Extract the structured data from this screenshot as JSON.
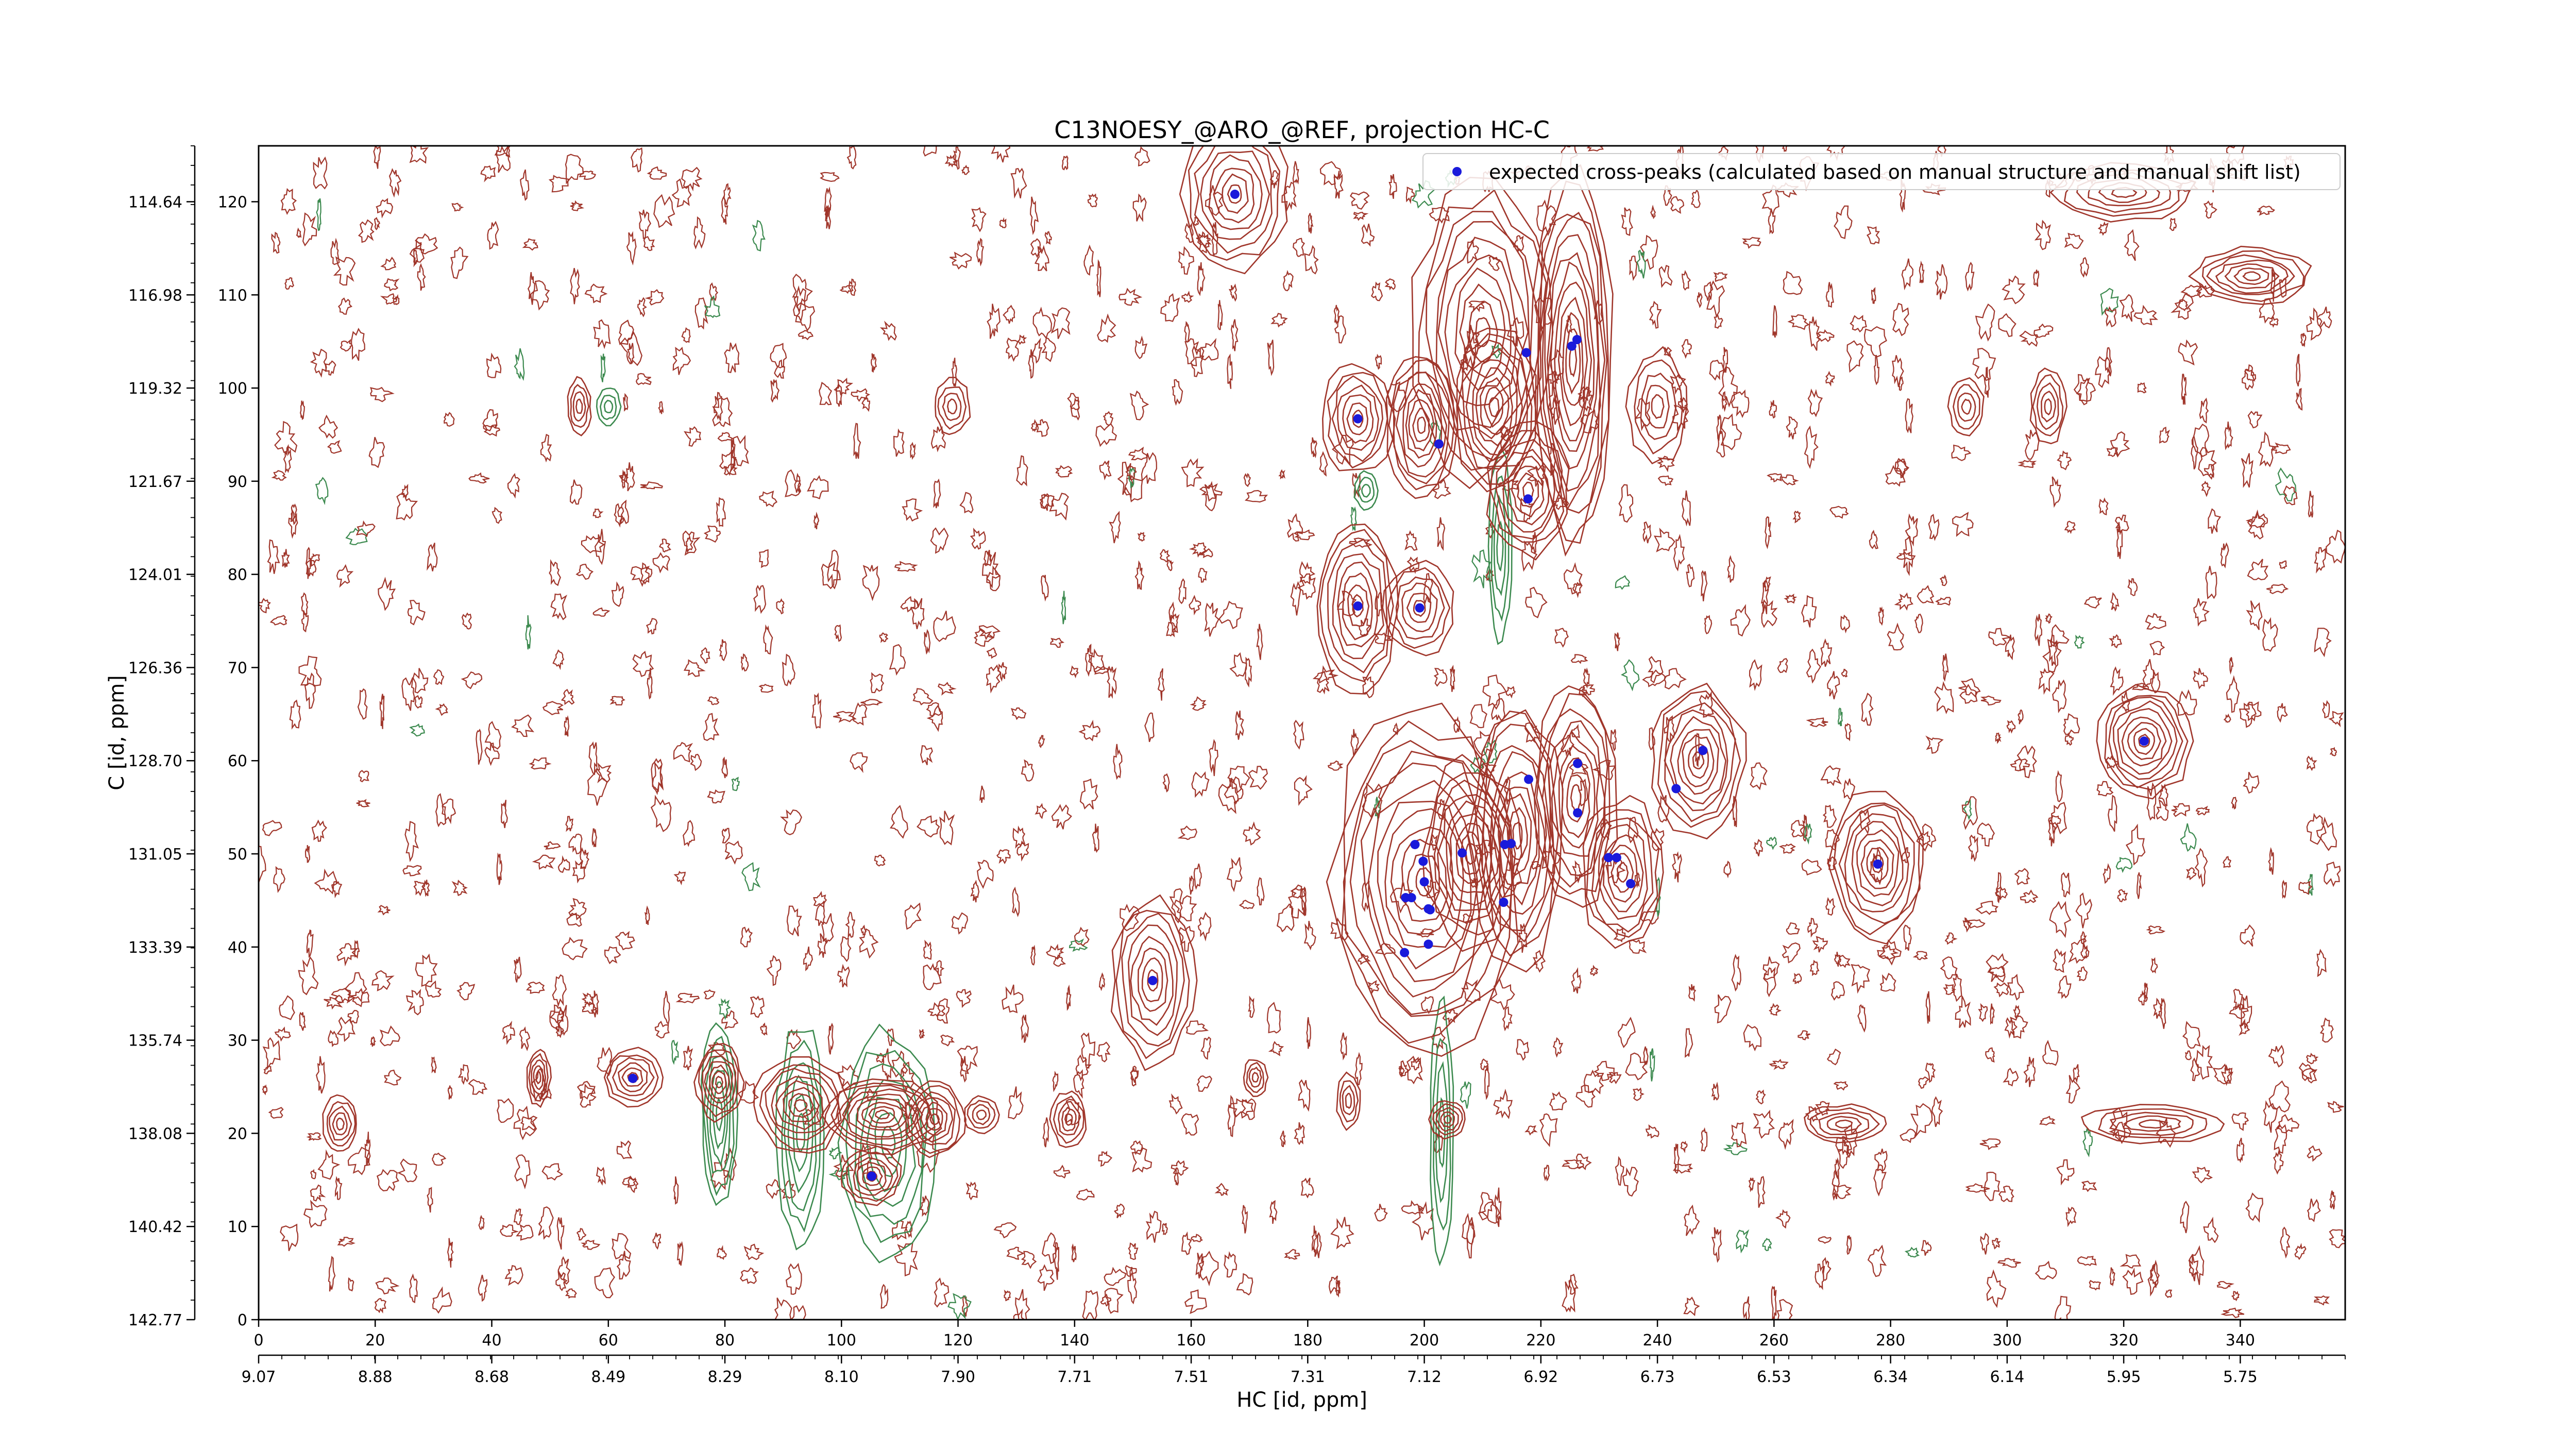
{
  "chart_data": {
    "type": "scatter",
    "title": "C13NOESY_@ARO_@REF, projection HC-C",
    "xlabel": "HC [id, ppm]",
    "ylabel": "C [id, ppm]",
    "xlim": [
      0,
      358
    ],
    "ylim": [
      0,
      126
    ],
    "x_ticks": [
      0,
      20,
      40,
      60,
      80,
      100,
      120,
      140,
      160,
      180,
      200,
      220,
      240,
      260,
      280,
      300,
      320,
      340
    ],
    "y_ticks": [
      0,
      10,
      20,
      30,
      40,
      50,
      60,
      70,
      80,
      90,
      100,
      110,
      120
    ],
    "x_ppm_ticks": [
      "9.07",
      "8.88",
      "8.68",
      "8.49",
      "8.29",
      "8.10",
      "7.90",
      "7.71",
      "7.51",
      "7.31",
      "7.12",
      "6.92",
      "6.73",
      "6.53",
      "6.34",
      "6.14",
      "5.95",
      "5.75"
    ],
    "y_ppm_ticks": [
      "142.77",
      "140.42",
      "138.08",
      "135.74",
      "133.39",
      "131.05",
      "128.70",
      "126.36",
      "124.01",
      "121.67",
      "119.32",
      "116.98",
      "114.64"
    ],
    "legend": {
      "position": "top-right",
      "label": "expected cross-peaks (calculated based on manual structure and manual shift list)"
    },
    "colors": {
      "positive_contour": "#a0362b",
      "negative_contour": "#3c8a4f",
      "expected_peak": "#1a1adb"
    },
    "series": [
      {
        "name": "expected cross-peaks (calculated based on manual structure and manual shift list)",
        "points": [
          [
            167.5,
            120.8
          ],
          [
            188.6,
            96.7
          ],
          [
            202.5,
            94.0
          ],
          [
            217.5,
            103.8
          ],
          [
            225.3,
            104.5
          ],
          [
            226.2,
            105.2
          ],
          [
            217.8,
            88.1
          ],
          [
            188.6,
            76.6
          ],
          [
            199.2,
            76.4
          ],
          [
            217.9,
            58.0
          ],
          [
            226.3,
            59.7
          ],
          [
            226.3,
            54.4
          ],
          [
            247.8,
            61.1
          ],
          [
            243.2,
            57.0
          ],
          [
            206.5,
            50.1
          ],
          [
            198.4,
            51.0
          ],
          [
            199.8,
            49.2
          ],
          [
            200.0,
            47.0
          ],
          [
            213.8,
            51.0
          ],
          [
            214.9,
            51.1
          ],
          [
            196.8,
            45.3
          ],
          [
            197.8,
            45.3
          ],
          [
            200.7,
            44.1
          ],
          [
            201.0,
            44.0
          ],
          [
            213.6,
            44.8
          ],
          [
            231.6,
            49.6
          ],
          [
            233.0,
            49.6
          ],
          [
            235.4,
            46.8
          ],
          [
            277.8,
            48.9
          ],
          [
            196.6,
            39.4
          ],
          [
            200.7,
            40.3
          ],
          [
            153.4,
            36.4
          ],
          [
            64.2,
            25.9
          ],
          [
            105.2,
            15.4
          ],
          [
            323.5,
            62.1
          ]
        ]
      }
    ],
    "contour_peaks": [
      {
        "x": 167.5,
        "y": 120.8,
        "rx": 9,
        "ry": 8,
        "n": 8
      },
      {
        "x": 188.6,
        "y": 96.7,
        "rx": 6,
        "ry": 6,
        "n": 7
      },
      {
        "x": 199.5,
        "y": 96.0,
        "rx": 6,
        "ry": 8,
        "n": 9
      },
      {
        "x": 212,
        "y": 98.0,
        "rx": 7,
        "ry": 9,
        "n": 9
      },
      {
        "x": 210,
        "y": 106.0,
        "rx": 12,
        "ry": 16,
        "n": 10
      },
      {
        "x": 225.5,
        "y": 103.0,
        "rx": 7,
        "ry": 20,
        "n": 12
      },
      {
        "x": 217.8,
        "y": 89.0,
        "rx": 7,
        "ry": 7,
        "n": 8
      },
      {
        "x": 240,
        "y": 98.0,
        "rx": 5,
        "ry": 6,
        "n": 5
      },
      {
        "x": 188.6,
        "y": 76.6,
        "rx": 7,
        "ry": 9,
        "n": 8
      },
      {
        "x": 199.2,
        "y": 76.4,
        "rx": 6,
        "ry": 5,
        "n": 6
      },
      {
        "x": 200.0,
        "y": 47.0,
        "rx": 16,
        "ry": 18,
        "n": 12
      },
      {
        "x": 208.0,
        "y": 50.0,
        "rx": 8,
        "ry": 10,
        "n": 9
      },
      {
        "x": 216.0,
        "y": 52.0,
        "rx": 8,
        "ry": 14,
        "n": 10
      },
      {
        "x": 226.0,
        "y": 56.0,
        "rx": 7,
        "ry": 12,
        "n": 9
      },
      {
        "x": 234.0,
        "y": 48.0,
        "rx": 7,
        "ry": 8,
        "n": 8
      },
      {
        "x": 247.0,
        "y": 60.0,
        "rx": 8,
        "ry": 8,
        "n": 9
      },
      {
        "x": 277.8,
        "y": 48.9,
        "rx": 8,
        "ry": 8,
        "n": 9
      },
      {
        "x": 323.5,
        "y": 62.1,
        "rx": 8,
        "ry": 6,
        "n": 9
      },
      {
        "x": 153.4,
        "y": 36.4,
        "rx": 7,
        "ry": 9,
        "n": 8
      },
      {
        "x": 64.2,
        "y": 26.0,
        "rx": 5,
        "ry": 3,
        "n": 6
      },
      {
        "x": 79.0,
        "y": 25.5,
        "rx": 4,
        "ry": 4,
        "n": 7
      },
      {
        "x": 93.0,
        "y": 23.0,
        "rx": 8,
        "ry": 5,
        "n": 8
      },
      {
        "x": 107.0,
        "y": 22.0,
        "rx": 10,
        "ry": 4,
        "n": 9
      },
      {
        "x": 116.0,
        "y": 21.5,
        "rx": 5,
        "ry": 4,
        "n": 7
      },
      {
        "x": 105.2,
        "y": 15.4,
        "rx": 5,
        "ry": 3,
        "n": 6
      },
      {
        "x": 14.0,
        "y": 21.0,
        "rx": 3,
        "ry": 3,
        "n": 5
      },
      {
        "x": 48.0,
        "y": 26.0,
        "rx": 2,
        "ry": 3,
        "n": 5
      },
      {
        "x": 124.0,
        "y": 22.0,
        "rx": 3,
        "ry": 2,
        "n": 4
      },
      {
        "x": 139.0,
        "y": 21.5,
        "rx": 3,
        "ry": 3,
        "n": 5
      },
      {
        "x": 171.0,
        "y": 26.0,
        "rx": 2,
        "ry": 2,
        "n": 4
      },
      {
        "x": 187.0,
        "y": 23.5,
        "rx": 2,
        "ry": 3,
        "n": 4
      },
      {
        "x": 204.0,
        "y": 21.5,
        "rx": 3,
        "ry": 2,
        "n": 5
      },
      {
        "x": 272.0,
        "y": 21.0,
        "rx": 7,
        "ry": 2,
        "n": 5
      },
      {
        "x": 325.0,
        "y": 21.0,
        "rx": 12,
        "ry": 2,
        "n": 5
      },
      {
        "x": 342.0,
        "y": 112.0,
        "rx": 10,
        "ry": 3,
        "n": 7
      },
      {
        "x": 320.0,
        "y": 121.0,
        "rx": 12,
        "ry": 3,
        "n": 6
      },
      {
        "x": 55.0,
        "y": 98.0,
        "rx": 2,
        "ry": 3,
        "n": 4
      },
      {
        "x": 119.0,
        "y": 98.0,
        "rx": 3,
        "ry": 3,
        "n": 4
      },
      {
        "x": 307.0,
        "y": 98.0,
        "rx": 3,
        "ry": 4,
        "n": 5
      },
      {
        "x": 293.0,
        "y": 98.0,
        "rx": 3,
        "ry": 3,
        "n": 4
      }
    ],
    "negative_peaks": [
      {
        "x": 79.0,
        "y": 22.0,
        "rx": 3,
        "ry": 10,
        "n": 6
      },
      {
        "x": 93.0,
        "y": 20.0,
        "rx": 4,
        "ry": 12,
        "n": 6
      },
      {
        "x": 108.0,
        "y": 19.0,
        "rx": 8,
        "ry": 12,
        "n": 7
      },
      {
        "x": 203.0,
        "y": 20.0,
        "rx": 2,
        "ry": 14,
        "n": 4
      },
      {
        "x": 213.0,
        "y": 83.0,
        "rx": 2,
        "ry": 10,
        "n": 4
      },
      {
        "x": 60.0,
        "y": 98.0,
        "rx": 2,
        "ry": 2,
        "n": 3
      },
      {
        "x": 190.0,
        "y": 89.0,
        "rx": 2,
        "ry": 2,
        "n": 3
      }
    ]
  }
}
